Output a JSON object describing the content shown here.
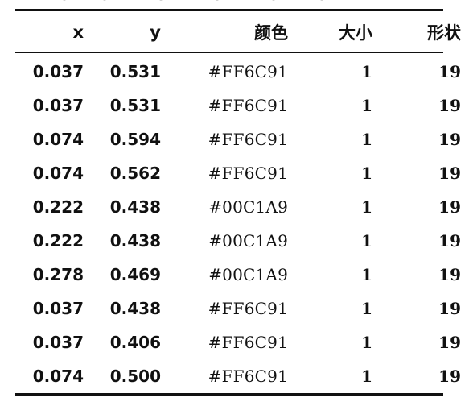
{
  "table": {
    "columns": [
      "x",
      "y",
      "颜色",
      "大小",
      "形状"
    ],
    "rows": [
      [
        "0.037",
        "0.531",
        "#FF6C91",
        "1",
        "19"
      ],
      [
        "0.037",
        "0.531",
        "#FF6C91",
        "1",
        "19"
      ],
      [
        "0.074",
        "0.594",
        "#FF6C91",
        "1",
        "19"
      ],
      [
        "0.074",
        "0.562",
        "#FF6C91",
        "1",
        "19"
      ],
      [
        "0.222",
        "0.438",
        "#00C1A9",
        "1",
        "19"
      ],
      [
        "0.222",
        "0.438",
        "#00C1A9",
        "1",
        "19"
      ],
      [
        "0.278",
        "0.469",
        "#00C1A9",
        "1",
        "19"
      ],
      [
        "0.037",
        "0.438",
        "#FF6C91",
        "1",
        "19"
      ],
      [
        "0.037",
        "0.406",
        "#FF6C91",
        "1",
        "19"
      ],
      [
        "0.074",
        "0.500",
        "#FF6C91",
        "1",
        "19"
      ]
    ]
  }
}
